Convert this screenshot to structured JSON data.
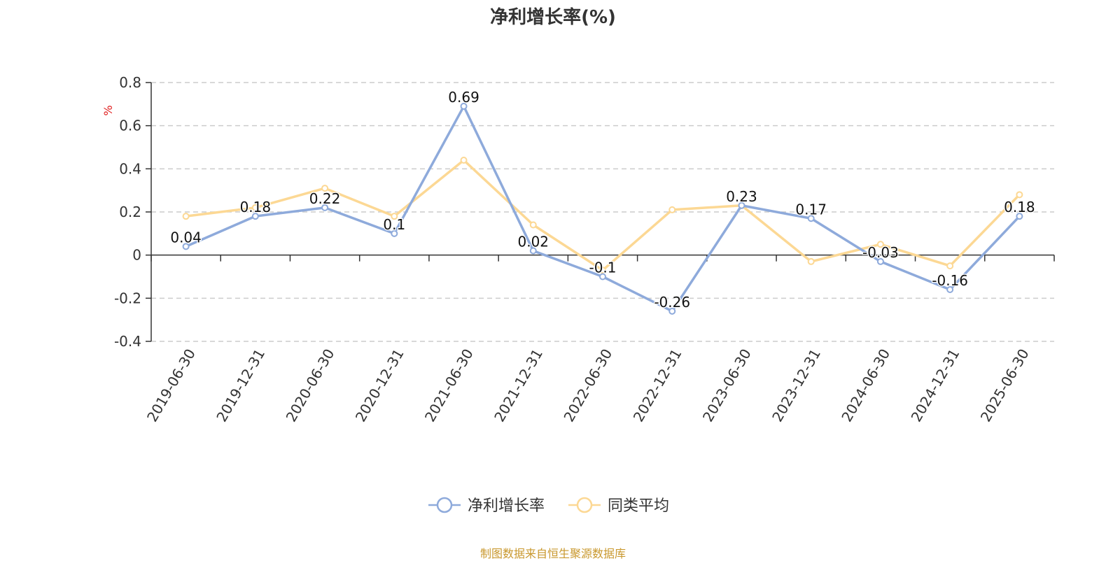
{
  "chart_data": {
    "type": "line",
    "title": "净利增长率(%)",
    "ylabel": "%",
    "xlabel": "",
    "ylim": [
      -0.4,
      0.8
    ],
    "yticks": [
      "0.8",
      "0.6",
      "0.4",
      "0.2",
      "0",
      "-0.2",
      "-0.4"
    ],
    "ytick_values": [
      0.8,
      0.6,
      0.4,
      0.2,
      0,
      -0.2,
      -0.4
    ],
    "grid": true,
    "legend_position": "bottom-center",
    "categories": [
      "2019-06-30",
      "2019-12-31",
      "2020-06-30",
      "2020-12-31",
      "2021-06-30",
      "2021-12-31",
      "2022-06-30",
      "2022-12-31",
      "2023-06-30",
      "2023-12-31",
      "2024-06-30",
      "2024-12-31",
      "2025-06-30"
    ],
    "series": [
      {
        "name": "净利增长率",
        "color": "#8eaadb",
        "values": [
          0.04,
          0.18,
          0.22,
          0.1,
          0.69,
          0.02,
          -0.1,
          -0.26,
          0.23,
          0.17,
          -0.03,
          -0.16,
          0.18
        ],
        "labels": [
          "0.04",
          "0.18",
          "0.22",
          "0.1",
          "0.69",
          "0.02",
          "-0.1",
          "-0.26",
          "0.23",
          "0.17",
          "-0.03",
          "-0.16",
          "0.18"
        ]
      },
      {
        "name": "同类平均",
        "color": "#fcd894",
        "values": [
          0.18,
          0.22,
          0.31,
          0.18,
          0.44,
          0.14,
          -0.07,
          0.21,
          0.23,
          -0.03,
          0.05,
          -0.05,
          0.28
        ]
      }
    ]
  },
  "source_note": "制图数据来自恒生聚源数据库"
}
